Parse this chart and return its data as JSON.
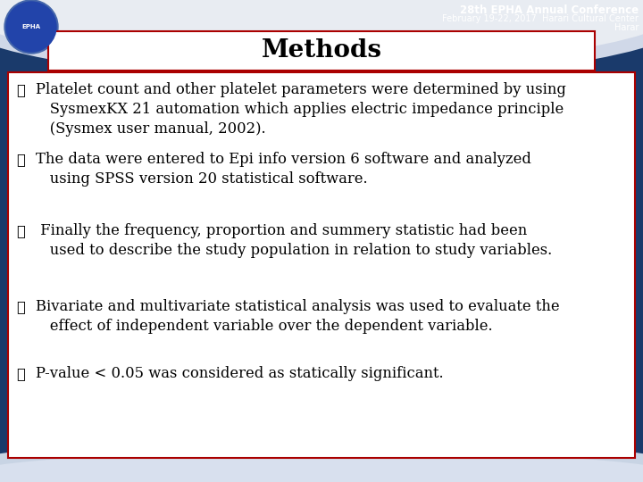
{
  "title": "Methods",
  "title_fontsize": 20,
  "title_color": "#000000",
  "header_bg": "#1a3a6b",
  "border_color": "#aa0000",
  "conference_line1": "28th EPHA Annual Conference",
  "conference_line2": "February 19-22, 2017  Harari Cultural Center",
  "conference_line3": "Harar",
  "bullet_char": "❖",
  "bullet_lines": [
    [
      "Platelet count and other platelet parameters were determined by using",
      "   SysmexKX 21 automation which applies electric impedance principle",
      "   (Sysmex user manual, 2002)."
    ],
    [
      "The data were entered to Epi info version 6 software and analyzed",
      "   using SPSS version 20 statistical software."
    ],
    [
      " Finally the frequency, proportion and summery statistic had been",
      "   used to describe the study population in relation to study variables."
    ],
    [
      "Bivariate and multivariate statistical analysis was used to evaluate the",
      "   effect of independent variable over the dependent variable."
    ],
    [
      "P-value < 0.05 was considered as statically significant."
    ]
  ],
  "body_fontsize": 11.8,
  "font_family": "serif",
  "fig_width": 7.2,
  "fig_height": 5.4,
  "dpi": 100
}
